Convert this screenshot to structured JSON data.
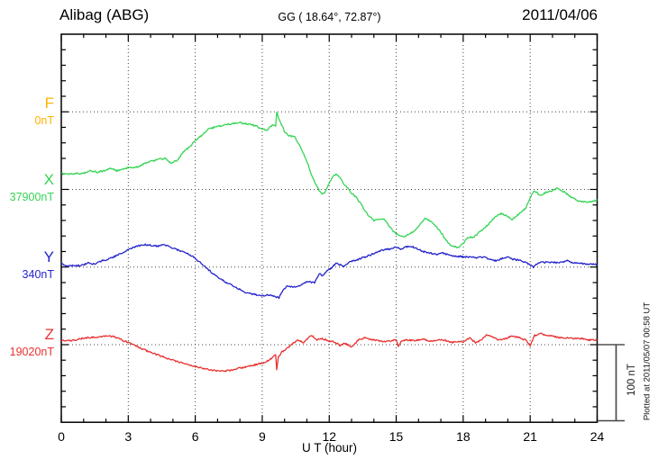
{
  "header": {
    "station": "Alibag (ABG)",
    "coordinates": "GG ( 18.64°,  72.87°)",
    "date": "2011/04/06"
  },
  "axis": {
    "x_ticks": [
      "0",
      "3",
      "6",
      "9",
      "12",
      "15",
      "18",
      "21",
      "24"
    ],
    "x_label": "U T (hour)",
    "scale_bar_label": "100 nT"
  },
  "footer_note": "Plotted at 2011/05/07 00:58 UT",
  "channels": [
    {
      "letter": "F",
      "baseline_label": "0nT",
      "baseline_nT": 0,
      "color": "#FFB300"
    },
    {
      "letter": "X",
      "baseline_label": "37900nT",
      "baseline_nT": 37900,
      "color": "#35D455"
    },
    {
      "letter": "Y",
      "baseline_label": "340nT",
      "baseline_nT": 340,
      "color": "#2424CC"
    },
    {
      "letter": "Z",
      "baseline_label": "19020nT",
      "baseline_nT": 19020,
      "color": "#E83030"
    }
  ],
  "chart_data": {
    "type": "line",
    "title": "Alibag (ABG) magnetogram, 2011/04/06",
    "xlabel": "U T (hour)",
    "x_range": [
      0,
      24
    ],
    "x_gridlines_hours": [
      3,
      6,
      9,
      12,
      15,
      18,
      21
    ],
    "y_axis": {
      "gridline_interval_nT": 100,
      "minor_tick_interval_nT": 20,
      "scale_bar_nT": 100
    },
    "grid": "dotted",
    "values_are": "offset_nT_from_channel_baseline",
    "series": [
      {
        "name": "F",
        "baseline_nT": 0,
        "points": []
      },
      {
        "name": "X",
        "baseline_nT": 37900,
        "points": [
          [
            0,
            20
          ],
          [
            0.5,
            20
          ],
          [
            1,
            21
          ],
          [
            1.3,
            24
          ],
          [
            1.6,
            22
          ],
          [
            2,
            25
          ],
          [
            2.2,
            27
          ],
          [
            2.5,
            24
          ],
          [
            3,
            28
          ],
          [
            3.4,
            29
          ],
          [
            3.7,
            33
          ],
          [
            4,
            36
          ],
          [
            4.4,
            39
          ],
          [
            4.7,
            40
          ],
          [
            4.9,
            34
          ],
          [
            5.2,
            38
          ],
          [
            5.5,
            49
          ],
          [
            5.8,
            56
          ],
          [
            6,
            63
          ],
          [
            6.3,
            70
          ],
          [
            6.6,
            78
          ],
          [
            7,
            81
          ],
          [
            7.3,
            83
          ],
          [
            7.7,
            85
          ],
          [
            8,
            86
          ],
          [
            8.4,
            84
          ],
          [
            8.7,
            82
          ],
          [
            9,
            78
          ],
          [
            9.2,
            76
          ],
          [
            9.45,
            83
          ],
          [
            9.6,
            82
          ],
          [
            9.65,
            100
          ],
          [
            9.75,
            90
          ],
          [
            9.9,
            82
          ],
          [
            10,
            74
          ],
          [
            10.2,
            69
          ],
          [
            10.45,
            68
          ],
          [
            10.7,
            55
          ],
          [
            11,
            36
          ],
          [
            11.2,
            20
          ],
          [
            11.35,
            9
          ],
          [
            11.55,
            -1
          ],
          [
            11.7,
            -6
          ],
          [
            11.85,
            -2
          ],
          [
            12,
            8
          ],
          [
            12.15,
            17
          ],
          [
            12.3,
            19
          ],
          [
            12.45,
            17
          ],
          [
            12.6,
            9
          ],
          [
            12.8,
            3
          ],
          [
            13,
            -5
          ],
          [
            13.2,
            -10
          ],
          [
            13.45,
            -20
          ],
          [
            13.7,
            -32
          ],
          [
            14,
            -40
          ],
          [
            14.2,
            -38
          ],
          [
            14.45,
            -38
          ],
          [
            14.7,
            -48
          ],
          [
            14.9,
            -55
          ],
          [
            15.1,
            -59
          ],
          [
            15.35,
            -61
          ],
          [
            15.6,
            -57
          ],
          [
            15.85,
            -53
          ],
          [
            16.1,
            -44
          ],
          [
            16.3,
            -37
          ],
          [
            16.5,
            -40
          ],
          [
            16.75,
            -47
          ],
          [
            17,
            -55
          ],
          [
            17.2,
            -64
          ],
          [
            17.45,
            -72
          ],
          [
            17.75,
            -75
          ],
          [
            18,
            -70
          ],
          [
            18.2,
            -62
          ],
          [
            18.5,
            -61
          ],
          [
            18.8,
            -53
          ],
          [
            19.1,
            -46
          ],
          [
            19.4,
            -36
          ],
          [
            19.7,
            -31
          ],
          [
            19.95,
            -34
          ],
          [
            20.2,
            -39
          ],
          [
            20.5,
            -31
          ],
          [
            20.8,
            -24
          ],
          [
            21,
            -11
          ],
          [
            21.15,
            -2
          ],
          [
            21.3,
            -4
          ],
          [
            21.45,
            -8
          ],
          [
            21.7,
            -4
          ],
          [
            21.95,
            -2
          ],
          [
            22.2,
            2
          ],
          [
            22.45,
            -2
          ],
          [
            22.7,
            -7
          ],
          [
            22.95,
            -12
          ],
          [
            23.2,
            -15
          ],
          [
            23.5,
            -16
          ],
          [
            23.75,
            -16
          ],
          [
            24,
            -13
          ]
        ]
      },
      {
        "name": "Y",
        "baseline_nT": 340,
        "points": [
          [
            0,
            4
          ],
          [
            0.3,
            1
          ],
          [
            0.6,
            2
          ],
          [
            0.9,
            2
          ],
          [
            1.2,
            5
          ],
          [
            1.5,
            4
          ],
          [
            1.8,
            8
          ],
          [
            2.1,
            10
          ],
          [
            2.5,
            15
          ],
          [
            2.8,
            19
          ],
          [
            3.1,
            24
          ],
          [
            3.4,
            27
          ],
          [
            3.7,
            29
          ],
          [
            4,
            28
          ],
          [
            4.3,
            27
          ],
          [
            4.6,
            29
          ],
          [
            4.8,
            27
          ],
          [
            5.1,
            23
          ],
          [
            5.4,
            20
          ],
          [
            5.7,
            17
          ],
          [
            6,
            11
          ],
          [
            6.3,
            4
          ],
          [
            6.6,
            -4
          ],
          [
            7,
            -13
          ],
          [
            7.4,
            -20
          ],
          [
            7.8,
            -26
          ],
          [
            8.2,
            -32
          ],
          [
            8.6,
            -35
          ],
          [
            9,
            -37
          ],
          [
            9.3,
            -36
          ],
          [
            9.6,
            -38
          ],
          [
            9.75,
            -40
          ],
          [
            9.9,
            -31
          ],
          [
            10.1,
            -25
          ],
          [
            10.4,
            -26
          ],
          [
            10.7,
            -24
          ],
          [
            10.9,
            -20
          ],
          [
            11.1,
            -19
          ],
          [
            11.35,
            -20
          ],
          [
            11.55,
            -8
          ],
          [
            11.7,
            -12
          ],
          [
            11.9,
            -5
          ],
          [
            12.1,
            -1
          ],
          [
            12.3,
            5
          ],
          [
            12.5,
            3
          ],
          [
            12.65,
            1
          ],
          [
            12.9,
            6
          ],
          [
            13.2,
            9
          ],
          [
            13.5,
            12
          ],
          [
            13.8,
            15
          ],
          [
            14.1,
            19
          ],
          [
            14.4,
            22
          ],
          [
            14.7,
            23
          ],
          [
            15,
            26
          ],
          [
            15.2,
            23
          ],
          [
            15.45,
            26
          ],
          [
            15.65,
            27
          ],
          [
            15.9,
            24
          ],
          [
            16.2,
            20
          ],
          [
            16.5,
            18
          ],
          [
            16.8,
            16
          ],
          [
            17.1,
            18
          ],
          [
            17.4,
            15
          ],
          [
            17.7,
            14
          ],
          [
            18,
            13
          ],
          [
            18.3,
            13
          ],
          [
            18.6,
            12
          ],
          [
            18.9,
            13
          ],
          [
            19.2,
            10
          ],
          [
            19.5,
            8
          ],
          [
            19.75,
            11
          ],
          [
            19.95,
            13
          ],
          [
            20.2,
            10
          ],
          [
            20.5,
            9
          ],
          [
            20.8,
            6
          ],
          [
            21.05,
            2
          ],
          [
            21.15,
            0
          ],
          [
            21.3,
            4
          ],
          [
            21.5,
            6
          ],
          [
            21.8,
            6
          ],
          [
            22.1,
            6
          ],
          [
            22.4,
            6
          ],
          [
            22.65,
            8
          ],
          [
            22.9,
            6
          ],
          [
            23.2,
            5
          ],
          [
            23.5,
            4
          ],
          [
            23.75,
            4
          ],
          [
            24,
            3
          ]
        ]
      },
      {
        "name": "Z",
        "baseline_nT": 19020,
        "points": [
          [
            0,
            5
          ],
          [
            0.3,
            5
          ],
          [
            0.6,
            6
          ],
          [
            0.9,
            8
          ],
          [
            1.2,
            9
          ],
          [
            1.5,
            10
          ],
          [
            1.8,
            10
          ],
          [
            2.1,
            11
          ],
          [
            2.4,
            10
          ],
          [
            2.7,
            6
          ],
          [
            3,
            3
          ],
          [
            3.3,
            -1
          ],
          [
            3.6,
            -5
          ],
          [
            4,
            -10
          ],
          [
            4.4,
            -14
          ],
          [
            4.8,
            -18
          ],
          [
            5.2,
            -22
          ],
          [
            5.6,
            -25
          ],
          [
            6,
            -28
          ],
          [
            6.4,
            -31
          ],
          [
            6.8,
            -33
          ],
          [
            7.2,
            -34
          ],
          [
            7.6,
            -33
          ],
          [
            8,
            -30
          ],
          [
            8.4,
            -28
          ],
          [
            8.8,
            -25
          ],
          [
            9.1,
            -23
          ],
          [
            9.4,
            -18
          ],
          [
            9.6,
            -13
          ],
          [
            9.65,
            -33
          ],
          [
            9.72,
            -16
          ],
          [
            9.9,
            -9
          ],
          [
            10.1,
            -5
          ],
          [
            10.35,
            1
          ],
          [
            10.6,
            6
          ],
          [
            10.85,
            3
          ],
          [
            11.1,
            10
          ],
          [
            11.25,
            11
          ],
          [
            11.45,
            6
          ],
          [
            11.65,
            8
          ],
          [
            11.85,
            6
          ],
          [
            12,
            4
          ],
          [
            12.2,
            4
          ],
          [
            12.5,
            -1
          ],
          [
            12.7,
            2
          ],
          [
            13,
            -3
          ],
          [
            13.3,
            6
          ],
          [
            13.6,
            9
          ],
          [
            14,
            6
          ],
          [
            14.4,
            4
          ],
          [
            14.75,
            5
          ],
          [
            15,
            6
          ],
          [
            15.1,
            -3
          ],
          [
            15.25,
            5
          ],
          [
            15.55,
            6
          ],
          [
            15.85,
            5
          ],
          [
            16.2,
            8
          ],
          [
            16.5,
            4
          ],
          [
            16.8,
            6
          ],
          [
            17.1,
            6
          ],
          [
            17.5,
            3
          ],
          [
            17.8,
            4
          ],
          [
            18.05,
            4
          ],
          [
            18.3,
            9
          ],
          [
            18.55,
            2
          ],
          [
            18.8,
            6
          ],
          [
            19.05,
            12
          ],
          [
            19.3,
            10
          ],
          [
            19.6,
            6
          ],
          [
            19.9,
            8
          ],
          [
            20.2,
            11
          ],
          [
            20.5,
            9
          ],
          [
            20.8,
            6
          ],
          [
            21,
            -1
          ],
          [
            21.2,
            12
          ],
          [
            21.5,
            14
          ],
          [
            21.8,
            12
          ],
          [
            22.1,
            10
          ],
          [
            22.4,
            9
          ],
          [
            22.7,
            9
          ],
          [
            23,
            8
          ],
          [
            23.3,
            8
          ],
          [
            23.6,
            6
          ],
          [
            24,
            6
          ]
        ]
      }
    ]
  }
}
